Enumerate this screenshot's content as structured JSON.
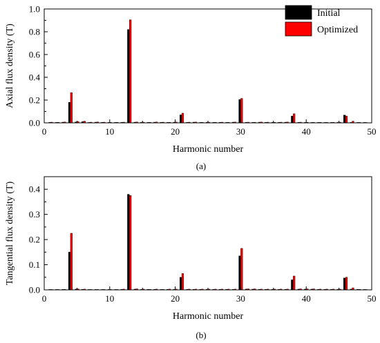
{
  "colors": {
    "initial": "#000000",
    "optimized": "#ff0000",
    "axis": "#000000"
  },
  "chart_data": [
    {
      "type": "bar",
      "id": "a",
      "caption": "(a)",
      "xlabel": "Harmonic number",
      "ylabel": "Axial flux density (T)",
      "xlim": [
        0,
        50
      ],
      "ylim": [
        0,
        1.0
      ],
      "xticks": [
        0,
        10,
        20,
        30,
        40,
        50
      ],
      "yticks": [
        0.0,
        0.2,
        0.4,
        0.6,
        0.8,
        1.0
      ],
      "ytick_labels": [
        "0.0",
        "0.2",
        "0.4",
        "0.6",
        "0.8",
        "1.0"
      ],
      "legend": {
        "placement": "top-right",
        "entries": [
          "Initial",
          "Optimized"
        ]
      },
      "grid": false,
      "x": [
        1,
        2,
        3,
        4,
        5,
        6,
        7,
        8,
        9,
        10,
        11,
        12,
        13,
        14,
        15,
        16,
        17,
        18,
        19,
        20,
        21,
        22,
        23,
        24,
        25,
        26,
        27,
        28,
        29,
        30,
        31,
        32,
        33,
        34,
        35,
        36,
        37,
        38,
        39,
        40,
        41,
        42,
        43,
        44,
        45,
        46,
        47,
        48,
        49
      ],
      "series": [
        {
          "name": "Initial",
          "values": [
            0.005,
            0.004,
            0.006,
            0.18,
            0.008,
            0.01,
            0.004,
            0.006,
            0.005,
            0.003,
            0.004,
            0.005,
            0.82,
            0.006,
            0.005,
            0.004,
            0.006,
            0.005,
            0.004,
            0.006,
            0.07,
            0.005,
            0.006,
            0.004,
            0.005,
            0.004,
            0.005,
            0.004,
            0.006,
            0.205,
            0.005,
            0.004,
            0.006,
            0.005,
            0.004,
            0.005,
            0.006,
            0.06,
            0.005,
            0.004,
            0.003,
            0.004,
            0.003,
            0.004,
            0.005,
            0.068,
            0.004,
            0.003,
            0.002
          ]
        },
        {
          "name": "Optimized",
          "values": [
            0.006,
            0.005,
            0.008,
            0.265,
            0.012,
            0.015,
            0.006,
            0.008,
            0.006,
            0.004,
            0.005,
            0.006,
            0.905,
            0.008,
            0.006,
            0.005,
            0.008,
            0.006,
            0.005,
            0.007,
            0.085,
            0.006,
            0.007,
            0.005,
            0.006,
            0.005,
            0.006,
            0.005,
            0.007,
            0.215,
            0.006,
            0.005,
            0.007,
            0.006,
            0.005,
            0.006,
            0.007,
            0.08,
            0.006,
            0.005,
            0.004,
            0.005,
            0.004,
            0.005,
            0.006,
            0.06,
            0.015,
            0.004,
            0.003
          ]
        }
      ]
    },
    {
      "type": "bar",
      "id": "b",
      "caption": "(b)",
      "xlabel": "Harmonic number",
      "ylabel": "Tangential flux density (T)",
      "xlim": [
        0,
        50
      ],
      "ylim": [
        0,
        0.45
      ],
      "xticks": [
        0,
        10,
        20,
        30,
        40,
        50
      ],
      "yticks": [
        0.0,
        0.1,
        0.2,
        0.3,
        0.4
      ],
      "ytick_labels": [
        "0.0",
        "0.1",
        "0.2",
        "0.3",
        "0.4"
      ],
      "grid": false,
      "x": [
        1,
        2,
        3,
        4,
        5,
        6,
        7,
        8,
        9,
        10,
        11,
        12,
        13,
        14,
        15,
        16,
        17,
        18,
        19,
        20,
        21,
        22,
        23,
        24,
        25,
        26,
        27,
        28,
        29,
        30,
        31,
        32,
        33,
        34,
        35,
        36,
        37,
        38,
        39,
        40,
        41,
        42,
        43,
        44,
        45,
        46,
        47,
        48,
        49
      ],
      "series": [
        {
          "name": "Initial",
          "values": [
            0.001,
            0.001,
            0.002,
            0.15,
            0.003,
            0.002,
            0.001,
            0.001,
            0.001,
            0.001,
            0.001,
            0.002,
            0.38,
            0.003,
            0.002,
            0.002,
            0.002,
            0.001,
            0.002,
            0.002,
            0.05,
            0.002,
            0.002,
            0.002,
            0.002,
            0.002,
            0.002,
            0.002,
            0.002,
            0.135,
            0.003,
            0.003,
            0.002,
            0.002,
            0.002,
            0.002,
            0.002,
            0.04,
            0.003,
            0.003,
            0.003,
            0.002,
            0.002,
            0.002,
            0.002,
            0.047,
            0.003,
            0.002,
            0.001
          ]
        },
        {
          "name": "Optimized",
          "values": [
            0.001,
            0.001,
            0.002,
            0.225,
            0.004,
            0.003,
            0.001,
            0.001,
            0.001,
            0.001,
            0.001,
            0.003,
            0.375,
            0.004,
            0.003,
            0.002,
            0.003,
            0.002,
            0.003,
            0.003,
            0.065,
            0.003,
            0.003,
            0.003,
            0.003,
            0.003,
            0.003,
            0.003,
            0.003,
            0.165,
            0.004,
            0.004,
            0.003,
            0.003,
            0.003,
            0.003,
            0.003,
            0.055,
            0.004,
            0.004,
            0.004,
            0.003,
            0.003,
            0.003,
            0.003,
            0.05,
            0.008,
            0.002,
            0.001
          ]
        }
      ]
    }
  ]
}
